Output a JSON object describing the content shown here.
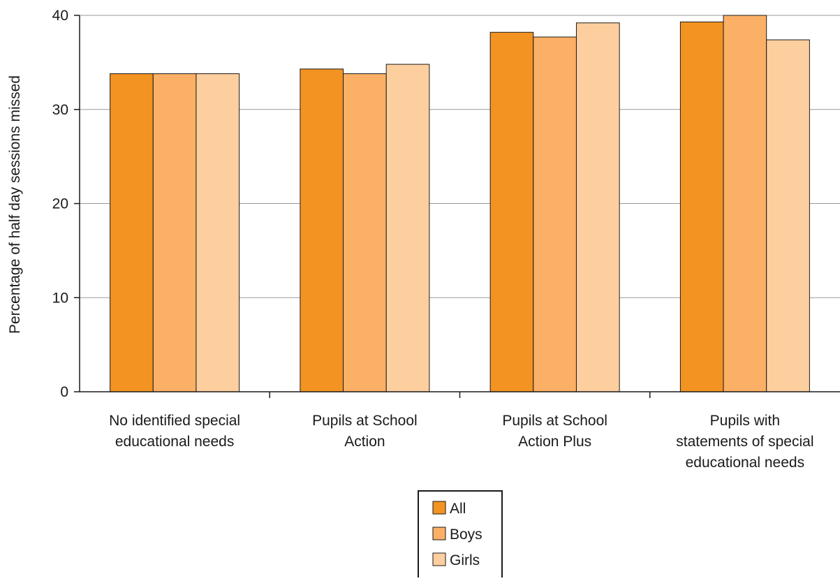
{
  "chart_data": {
    "type": "bar",
    "title": "",
    "xlabel": "",
    "ylabel": "Percentage of half day sessions missed",
    "ylim": [
      0,
      40
    ],
    "yticks": [
      0,
      10,
      20,
      30,
      40
    ],
    "grid": true,
    "legend_position": "bottom-center",
    "categories": [
      [
        "No identified special",
        "educational needs"
      ],
      [
        "Pupils at School",
        "Action"
      ],
      [
        "Pupils at School",
        "Action Plus"
      ],
      [
        "Pupils with",
        "statements of special",
        "educational needs"
      ]
    ],
    "series": [
      {
        "name": "All",
        "color": "#f39321",
        "values": [
          33.8,
          34.3,
          38.2,
          39.3
        ]
      },
      {
        "name": "Boys",
        "color": "#fbb066",
        "values": [
          33.8,
          33.8,
          37.7,
          40.0
        ]
      },
      {
        "name": "Girls",
        "color": "#fdcf9e",
        "values": [
          33.8,
          34.8,
          39.2,
          37.4
        ]
      }
    ],
    "colors": {
      "gridline": "#9a9a9a",
      "axis": "#1a1a1a",
      "bar_stroke": "#1a1a1a"
    }
  }
}
